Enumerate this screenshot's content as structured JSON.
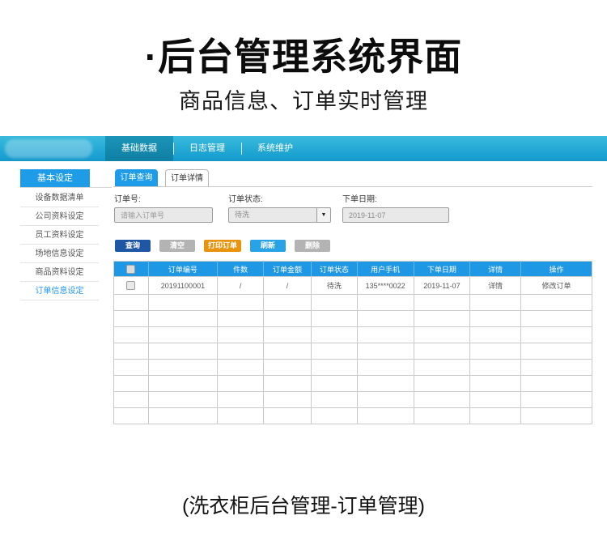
{
  "hero": {
    "title": "·后台管理系统界面",
    "subtitle": "商品信息、订单实时管理"
  },
  "navbar": {
    "tabs": [
      {
        "label": "基础数据",
        "active": true
      },
      {
        "label": "日志管理",
        "active": false
      },
      {
        "label": "系统维护",
        "active": false
      }
    ]
  },
  "sidebar": {
    "header": "基本设定",
    "items": [
      {
        "label": "设备数据清单",
        "active": false
      },
      {
        "label": "公司资料设定",
        "active": false
      },
      {
        "label": "员工资料设定",
        "active": false
      },
      {
        "label": "场地信息设定",
        "active": false
      },
      {
        "label": "商品资料设定",
        "active": false
      },
      {
        "label": "订单信息设定",
        "active": true
      }
    ]
  },
  "main": {
    "tabs": [
      {
        "label": "订单查询",
        "active": true
      },
      {
        "label": "订单详情",
        "active": false
      }
    ],
    "filters": {
      "order_no": {
        "label": "订单号:",
        "placeholder": "请输入订单号"
      },
      "order_status": {
        "label": "订单状态:",
        "value": "待洗"
      },
      "order_date": {
        "label": "下单日期:",
        "value": "2019-11-07"
      }
    },
    "buttons": [
      {
        "label": "查询",
        "color": "#1f57a5"
      },
      {
        "label": "清空",
        "color": "#b3b3b3"
      },
      {
        "label": "打印订单",
        "color": "#e8940c"
      },
      {
        "label": "刷新",
        "color": "#29a3e8"
      },
      {
        "label": "删除",
        "color": "#b3b3b3"
      }
    ],
    "table": {
      "columns": [
        "订单编号",
        "件数",
        "订单金额",
        "订单状态",
        "用户手机",
        "下单日期",
        "详情",
        "操作"
      ],
      "col_widths_pct": [
        7.2,
        14.5,
        9.6,
        10.0,
        9.6,
        11.8,
        11.8,
        10.6,
        14.9
      ],
      "link_columns": [
        "详情",
        "操作"
      ],
      "rows": [
        [
          "20191100001",
          "/",
          "/",
          "待洗",
          "135****0022",
          "2019-11-07",
          "详情",
          "修改订单"
        ]
      ],
      "empty_row_count": 8
    }
  },
  "caption": "(洗衣柜后台管理-订单管理)",
  "colors": {
    "accent_blue": "#1e9ce8",
    "table_header_blue": "#1e97e4",
    "navbar_cyan": "#1ba3d1",
    "link_blue": "#1a86d9"
  },
  "icons": {
    "dropdown_arrow": "▼"
  }
}
